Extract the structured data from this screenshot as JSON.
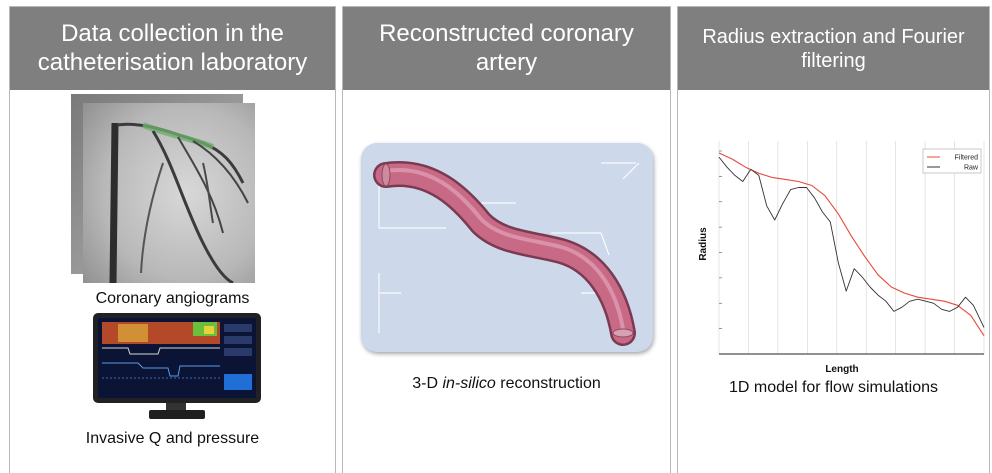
{
  "panels": {
    "collection": {
      "title_line1": "Data collection in the",
      "title_line2": "catheterisation laboratory",
      "angio_caption": "Coronary angiograms",
      "monitor_caption": "Invasive Q and pressure"
    },
    "reconstruction": {
      "title_line1": "Reconstructed coronary",
      "title_line2": "artery",
      "caption_prefix": "3-D ",
      "caption_italic": "in-silico",
      "caption_suffix": " reconstruction"
    },
    "radius": {
      "title_line1": "Radius extraction and Fourier",
      "title_line2": "filtering",
      "caption": "1D model for flow simulations"
    }
  },
  "colors": {
    "header_bg": "#7f7f7f",
    "filtered_line": "#e8493a",
    "raw_line": "#333333",
    "artery": "#c86a86",
    "artery_box": "#cdd8ea"
  },
  "chart_data": {
    "type": "line",
    "xlabel": "Length",
    "ylabel": "Radius",
    "legend_position": "top-right",
    "grid": true,
    "xlim": [
      0,
      1
    ],
    "ylim": [
      0,
      1
    ],
    "series": [
      {
        "name": "Filtered",
        "color": "#e8493a",
        "x": [
          0,
          0.05,
          0.1,
          0.15,
          0.2,
          0.25,
          0.3,
          0.35,
          0.4,
          0.45,
          0.5,
          0.55,
          0.6,
          0.65,
          0.7,
          0.75,
          0.8,
          0.85,
          0.9,
          0.95,
          1
        ],
        "y": [
          0.99,
          0.96,
          0.92,
          0.89,
          0.87,
          0.86,
          0.85,
          0.83,
          0.78,
          0.69,
          0.58,
          0.48,
          0.39,
          0.33,
          0.3,
          0.28,
          0.27,
          0.26,
          0.24,
          0.19,
          0.09
        ]
      },
      {
        "name": "Raw",
        "color": "#333333",
        "x": [
          0,
          0.03,
          0.06,
          0.09,
          0.12,
          0.15,
          0.18,
          0.21,
          0.24,
          0.27,
          0.3,
          0.33,
          0.36,
          0.39,
          0.42,
          0.45,
          0.48,
          0.51,
          0.54,
          0.57,
          0.6,
          0.63,
          0.66,
          0.69,
          0.72,
          0.75,
          0.78,
          0.81,
          0.84,
          0.87,
          0.9,
          0.93,
          0.96,
          1.0
        ],
        "y": [
          0.97,
          0.92,
          0.88,
          0.85,
          0.91,
          0.88,
          0.73,
          0.66,
          0.74,
          0.81,
          0.82,
          0.82,
          0.77,
          0.7,
          0.65,
          0.45,
          0.31,
          0.42,
          0.38,
          0.33,
          0.29,
          0.26,
          0.21,
          0.23,
          0.26,
          0.27,
          0.26,
          0.25,
          0.22,
          0.21,
          0.23,
          0.28,
          0.24,
          0.13
        ]
      }
    ]
  }
}
